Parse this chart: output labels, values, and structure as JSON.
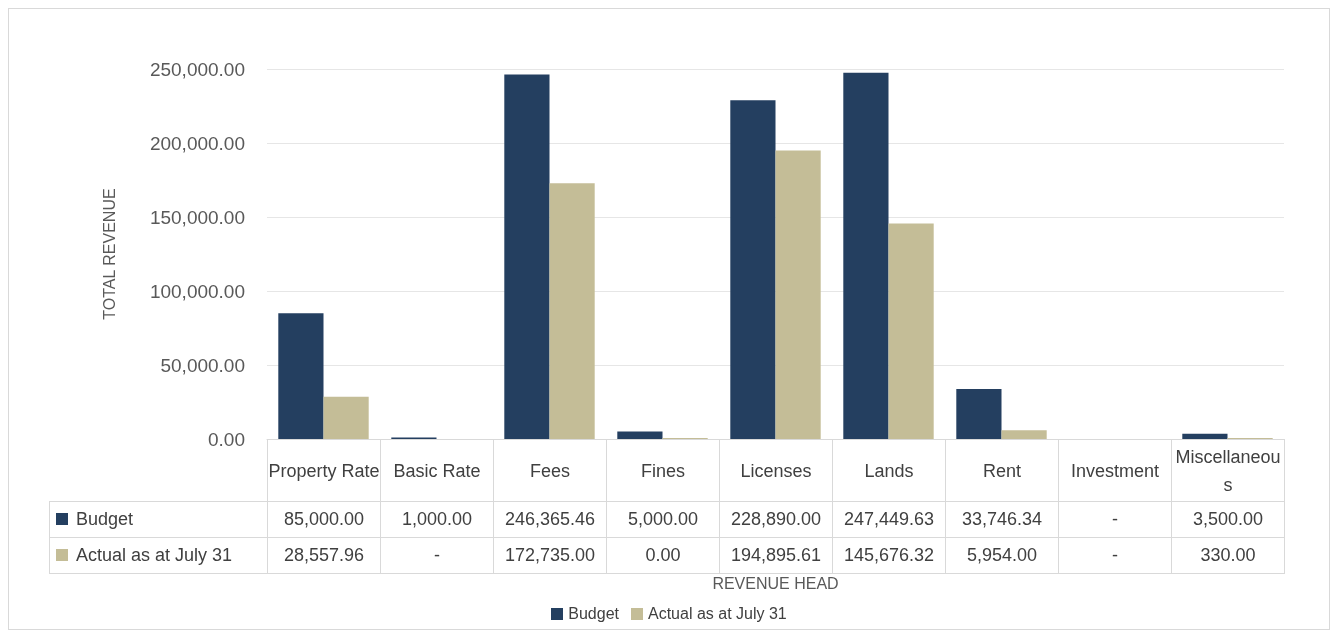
{
  "chart_data": {
    "type": "bar",
    "xlabel": "REVENUE HEAD",
    "ylabel": "TOTAL REVENUE",
    "categories": [
      "Property Rate",
      "Basic Rate",
      "Fees",
      "Fines",
      "Licenses",
      "Lands",
      "Rent",
      "Investment",
      "Miscellaneous"
    ],
    "series": [
      {
        "name": "Budget",
        "color": "#243f60",
        "values": [
          85000,
          1000,
          246365.46,
          5000,
          228890,
          247449.63,
          33746.34,
          null,
          3500
        ],
        "value_labels": [
          "85,000.00",
          "1,000.00",
          "246,365.46",
          "5,000.00",
          "228,890.00",
          "247,449.63",
          "33,746.34",
          "-",
          "3,500.00"
        ]
      },
      {
        "name": "Actual as at July 31",
        "color": "#c4bd97",
        "values": [
          28557.96,
          null,
          172735,
          0,
          194895.61,
          145676.32,
          5954,
          null,
          330
        ],
        "value_labels": [
          "28,557.96",
          "-",
          "172,735.00",
          "0.00",
          "194,895.61",
          "145,676.32",
          "5,954.00",
          "-",
          "330.00"
        ]
      }
    ],
    "ylim": [
      0,
      250000
    ],
    "yticks": [
      {
        "value": 0,
        "label": "0.00"
      },
      {
        "value": 50000,
        "label": "50,000.00"
      },
      {
        "value": 100000,
        "label": "100,000.00"
      },
      {
        "value": 150000,
        "label": "150,000.00"
      },
      {
        "value": 200000,
        "label": "200,000.00"
      },
      {
        "value": 250000,
        "label": "250,000.00"
      }
    ],
    "grid": "y",
    "legend": "bottom"
  }
}
